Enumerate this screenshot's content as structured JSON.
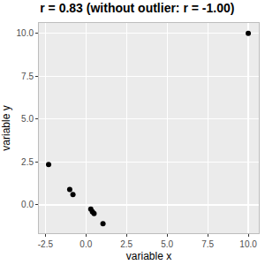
{
  "chart_data": {
    "type": "scatter",
    "title": "r = 0.83 (without outlier: r = -1.00)",
    "x_label": "variable x",
    "y_label": "variable y",
    "x": [
      -2.3,
      -1.0,
      -0.8,
      0.3,
      0.4,
      0.5,
      1.05,
      10.0
    ],
    "values": [
      2.35,
      0.9,
      0.6,
      -0.25,
      -0.4,
      -0.5,
      -1.1,
      10.0
    ],
    "color": "#000000",
    "marker": "circle",
    "xlim": [
      -2.9,
      10.65
    ],
    "xticks": [
      {
        "value": -2.5,
        "label": "-2.5"
      },
      {
        "value": 0,
        "label": "0.0"
      },
      {
        "value": 2.5,
        "label": "2.5"
      },
      {
        "value": 5,
        "label": "5.0"
      },
      {
        "value": 7.5,
        "label": "7.5"
      },
      {
        "value": 10,
        "label": "10.0"
      }
    ],
    "ylim": [
      -1.65,
      10.6
    ],
    "yticks": [
      {
        "value": 0,
        "label": "0.0"
      },
      {
        "value": 2.5,
        "label": "2.5"
      },
      {
        "value": 5,
        "label": "5.0"
      },
      {
        "value": 7.5,
        "label": "7.5"
      },
      {
        "value": 10,
        "label": "10.0"
      }
    ],
    "grid": true
  }
}
